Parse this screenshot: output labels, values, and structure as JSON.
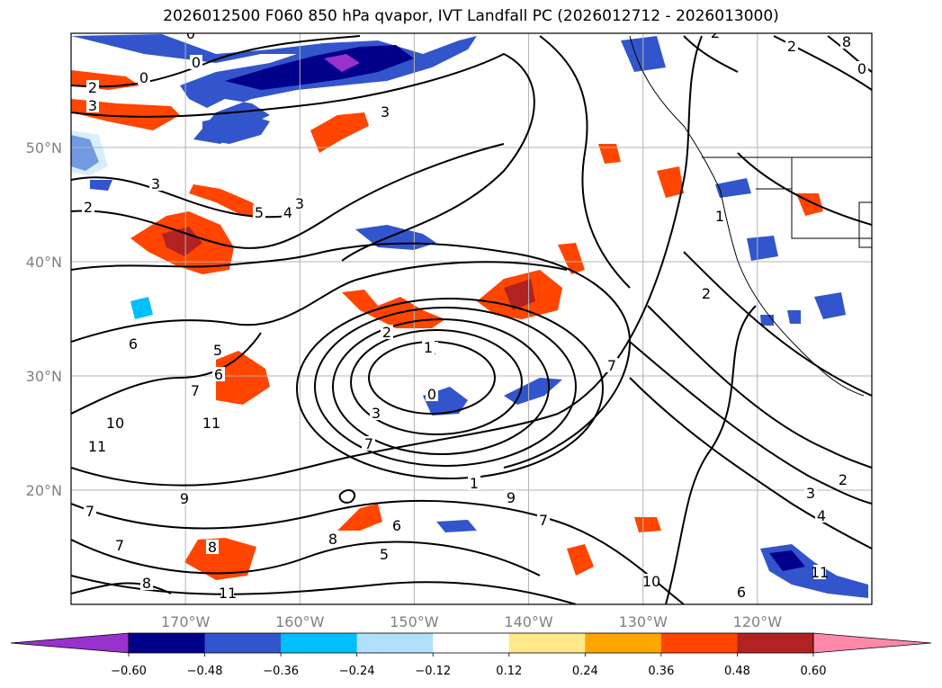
{
  "title": "2026012500 F060 850 hPa qvapor, IVT Landfall PC (2026012712 - 2026013000)",
  "chart_data": {
    "type": "contour-map",
    "title": "2026012500 F060 850 hPa qvapor, IVT Landfall PC (2026012712 - 2026013000)",
    "variable": "850 hPa qvapor, IVT Landfall PC",
    "lat_ticks": [
      "50°N",
      "40°N",
      "30°N",
      "20°N"
    ],
    "lat_values": [
      50,
      40,
      30,
      20
    ],
    "lon_ticks": [
      "170°W",
      "160°W",
      "150°W",
      "140°W",
      "130°W",
      "120°W"
    ],
    "lon_values": [
      -170,
      -160,
      -150,
      -140,
      -130,
      -120
    ],
    "lat_range": [
      10,
      60
    ],
    "lon_range": [
      -180,
      -110
    ],
    "colorbar": {
      "levels": [
        -0.6,
        -0.48,
        -0.36,
        -0.24,
        -0.12,
        0.12,
        0.24,
        0.36,
        0.48,
        0.6
      ],
      "labels": [
        "−0.60",
        "−0.48",
        "−0.36",
        "−0.24",
        "−0.12",
        "0.12",
        "0.24",
        "0.36",
        "0.48",
        "0.60"
      ],
      "colors": [
        "#9932cc",
        "#00008b",
        "#3355cc",
        "#00bfff",
        "#b0e0fa",
        "#ffffff",
        "#ffe88a",
        "#ffa500",
        "#ff4500",
        "#b22222",
        "#ff88aa"
      ],
      "extend": "both"
    },
    "contour_labels": [
      "0",
      "0",
      "0",
      "2",
      "3",
      "3",
      "3",
      "2",
      "5",
      "4",
      "3",
      "2",
      "1",
      "0",
      "2",
      "1",
      "6",
      "5",
      "6",
      "7",
      "7",
      "3",
      "8",
      "10",
      "11",
      "11",
      "9",
      "7",
      "7",
      "8",
      "8",
      "6",
      "8",
      "5",
      "11",
      "10",
      "11",
      "6",
      "9",
      "7",
      "1",
      "2",
      "3",
      "4",
      "2",
      "1",
      "0",
      "2",
      "8",
      "7"
    ]
  }
}
